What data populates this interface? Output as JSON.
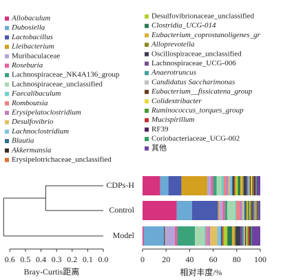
{
  "chart_data": {
    "type": "stacked-bar-dendrogram",
    "categories": [
      "CDPs-H",
      "Control",
      "Model"
    ],
    "x_label": "相对丰度/%",
    "xlim": [
      0,
      100
    ],
    "xticks": [
      0,
      20,
      40,
      60,
      80,
      100
    ],
    "dendrogram": {
      "x_label": "Bray-Curtis距离",
      "xlim": [
        0.65,
        0
      ],
      "xticks": [
        0.6,
        0.5,
        0.4,
        0.3,
        0.2,
        0.1,
        {
          "value": 0,
          "label": "0.0"
        }
      ],
      "merge_heights": [
        0.37,
        0.64
      ]
    },
    "series": [
      {
        "name": "Allobaculum",
        "italic": true,
        "color": "#d6337f",
        "values": [
          15,
          29,
          1
        ]
      },
      {
        "name": "Dubosiella",
        "italic": true,
        "color": "#6aaad4",
        "values": [
          7,
          13,
          17
        ]
      },
      {
        "name": "Lactobacillus",
        "italic": true,
        "color": "#4a5ab0",
        "values": [
          11,
          22,
          1
        ]
      },
      {
        "name": "Lleibacterium",
        "italic": true,
        "color": "#d4a020",
        "values": [
          22,
          1,
          0.5
        ]
      },
      {
        "name": "Muribaculaceae",
        "italic": false,
        "color": "#b4a4da",
        "values": [
          3,
          3,
          8
        ]
      },
      {
        "name": "Roseburia",
        "italic": true,
        "color": "#e85fa0",
        "values": [
          2,
          2,
          2
        ]
      },
      {
        "name": "Lachnospiraceae_NK4A136_group",
        "italic": false,
        "color": "#3aa37a",
        "values": [
          3,
          2,
          15
        ]
      },
      {
        "name": "Lachnospiraceae_unclassified",
        "italic": false,
        "color": "#a6d8b0",
        "values": [
          4,
          6.5,
          8
        ]
      },
      {
        "name": "Faecalibaculum",
        "italic": true,
        "color": "#6ad0c8",
        "values": [
          2,
          1,
          1
        ]
      },
      {
        "name": "Romboutsia",
        "italic": true,
        "color": "#f08080",
        "values": [
          2,
          3,
          1
        ]
      },
      {
        "name": "Erysipelatoclostridium",
        "italic": true,
        "color": "#c080c0",
        "values": [
          2,
          2,
          3
        ]
      },
      {
        "name": "Desulfovibrio",
        "italic": true,
        "color": "#e0c060",
        "values": [
          1,
          1,
          6
        ]
      },
      {
        "name": "Lachnoclostridium",
        "italic": true,
        "color": "#80c0e0",
        "values": [
          2,
          1,
          3
        ]
      },
      {
        "name": "Blautia",
        "italic": true,
        "color": "#2f6f8f",
        "values": [
          1,
          1,
          1
        ]
      },
      {
        "name": "Akkermansia",
        "italic": true,
        "color": "#3a2a20",
        "values": [
          1,
          0.5,
          0.5
        ]
      },
      {
        "name": "Erysipelotrichaceae_unclassified",
        "italic": false,
        "color": "#e07030",
        "values": [
          1,
          0.5,
          1
        ]
      },
      {
        "name": "Desulfovibrionaceae_unclassified",
        "italic": false,
        "color": "#b0d030",
        "values": [
          2,
          1,
          3
        ]
      },
      {
        "name": "Clostridia_UCG-014",
        "italic": true,
        "color": "#2a7a50",
        "values": [
          2,
          1,
          4
        ]
      },
      {
        "name": "Eubacterium_coprostanoligenes_gr",
        "italic": true,
        "color": "#d8b040",
        "values": [
          2,
          1,
          2
        ]
      },
      {
        "name": "Alloprevotella",
        "italic": true,
        "color": "#8a8a20",
        "values": [
          1,
          1,
          1
        ]
      },
      {
        "name": "Oscillospiraceae_unclassified",
        "italic": false,
        "color": "#3a3a50",
        "values": [
          2,
          1,
          4
        ]
      },
      {
        "name": "Lachnospiraceae_UCG-006",
        "italic": false,
        "color": "#705090",
        "values": [
          1,
          1,
          2
        ]
      },
      {
        "name": "Anaerotruncus",
        "italic": true,
        "color": "#40a0a0",
        "values": [
          1,
          0.5,
          1
        ]
      },
      {
        "name": "Candidatus Saccharimonas",
        "italic": true,
        "color": "#c0c0c0",
        "values": [
          1,
          0.5,
          1
        ]
      },
      {
        "name": "Eubacterium__fissicatena_group",
        "italic": true,
        "color": "#6a3a20",
        "values": [
          1,
          0.5,
          1
        ]
      },
      {
        "name": "Colidextribacter",
        "italic": true,
        "color": "#e8d840",
        "values": [
          1,
          0.5,
          1
        ]
      },
      {
        "name": "Ruminococcus_torques_group",
        "italic": true,
        "color": "#4a9a30",
        "values": [
          1,
          0.5,
          1
        ]
      },
      {
        "name": "Mucispirillum",
        "italic": true,
        "color": "#c03030",
        "values": [
          1,
          0.5,
          1
        ]
      },
      {
        "name": "RF39",
        "italic": false,
        "color": "#502060",
        "values": [
          1,
          0.5,
          1
        ]
      },
      {
        "name": "Coriobacteriaceae_UCG-002",
        "italic": false,
        "color": "#30a060",
        "values": [
          1,
          0.5,
          1
        ]
      },
      {
        "name": "其他",
        "italic": false,
        "color": "#7040a0",
        "values": [
          3,
          1.5,
          7
        ]
      }
    ]
  }
}
